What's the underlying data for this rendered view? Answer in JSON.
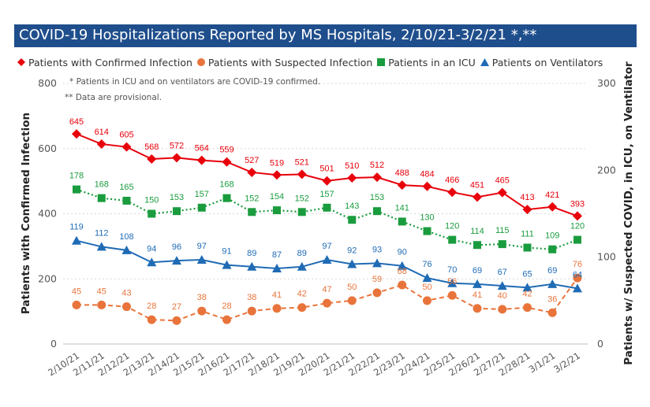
{
  "title": "COVID-19 Hospitalizations Reported by MS Hospitals, 2/10/21-3/2/21 *,**",
  "notes": [
    "* Patients in ICU and on ventilators are COVID-19 confirmed.",
    "** Data are provisional."
  ],
  "chart_data": {
    "type": "line",
    "categories": [
      "2/10/21",
      "2/11/21",
      "2/12/21",
      "2/13/21",
      "2/14/21",
      "2/15/21",
      "2/16/21",
      "2/17/21",
      "2/18/21",
      "2/19/21",
      "2/20/21",
      "2/21/21",
      "2/22/21",
      "2/23/21",
      "2/24/21",
      "2/25/21",
      "2/26/21",
      "2/27/21",
      "2/28/21",
      "3/1/21",
      "3/2/21"
    ],
    "ylabel_left": "Patients with Confirmed Infection",
    "ylabel_right": "Patients w/ Suspected COVID, in ICU, on Ventilator",
    "ylim_left": [
      0,
      800
    ],
    "yticks_left": [
      0,
      200,
      400,
      600,
      800
    ],
    "ylim_right": [
      0,
      300
    ],
    "yticks_right": [
      0,
      100,
      200,
      300
    ],
    "grid": true,
    "legend_position": "top",
    "series": [
      {
        "name": "Patients with Confirmed Infection",
        "axis": "left",
        "color": "#e8000b",
        "marker": "diamond",
        "line": "solid",
        "values": [
          645,
          614,
          605,
          568,
          572,
          564,
          559,
          527,
          519,
          521,
          501,
          510,
          512,
          488,
          484,
          466,
          451,
          465,
          413,
          421,
          393
        ]
      },
      {
        "name": "Patients with Suspected Infection",
        "axis": "right",
        "color": "#e8743b",
        "marker": "circle",
        "line": "dashed",
        "values": [
          45,
          45,
          43,
          28,
          27,
          38,
          28,
          38,
          41,
          42,
          47,
          50,
          59,
          68,
          50,
          56,
          41,
          40,
          42,
          36,
          76
        ]
      },
      {
        "name": "Patients in an ICU",
        "axis": "right",
        "color": "#1a9c3e",
        "marker": "square",
        "line": "dotted",
        "values": [
          178,
          168,
          165,
          150,
          153,
          157,
          168,
          152,
          154,
          152,
          157,
          143,
          153,
          141,
          130,
          120,
          114,
          115,
          111,
          109,
          120
        ]
      },
      {
        "name": "Patients on Ventilators",
        "axis": "right",
        "color": "#1f6bb5",
        "marker": "triangle",
        "line": "solid",
        "values": [
          119,
          112,
          108,
          94,
          96,
          97,
          91,
          89,
          87,
          89,
          97,
          92,
          93,
          90,
          76,
          70,
          69,
          67,
          65,
          69,
          64
        ]
      }
    ]
  }
}
